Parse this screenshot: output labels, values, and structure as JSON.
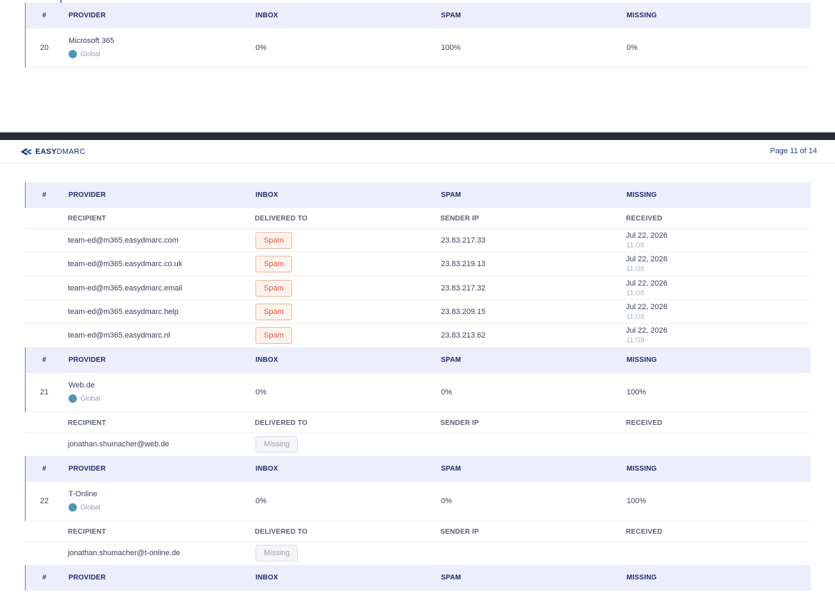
{
  "header": {
    "logo": {
      "bold": "EASY",
      "light": "DMARC"
    },
    "page_label": "Page 11 of 14"
  },
  "columns": {
    "num": "#",
    "provider": "PROVIDER",
    "inbox": "INBOX",
    "spam": "SPAM",
    "missing": "MISSING"
  },
  "sub_columns": {
    "recipient": "RECIPIENT",
    "delivered_to": "DELIVERED TO",
    "sender_ip": "SENDER IP",
    "received": "RECEIVED"
  },
  "providers": [
    {
      "num": "20",
      "name": "Microsoft 365",
      "region": "Global",
      "inbox": "0%",
      "spam": "100%",
      "missing": "0%",
      "recipients": [
        {
          "email": "team-ed@m365.easydmarc.com",
          "status": "Spam",
          "ip": "23.83.217.33",
          "date": "Jul 22, 2026",
          "time": "11:08"
        },
        {
          "email": "team-ed@m365.easydmarc.co.uk",
          "status": "Spam",
          "ip": "23.83.219.13",
          "date": "Jul 22, 2026",
          "time": "11:08"
        },
        {
          "email": "team-ed@m365.easydmarc.email",
          "status": "Spam",
          "ip": "23.83.217.32",
          "date": "Jul 22, 2026",
          "time": "11:08"
        },
        {
          "email": "team-ed@m365.easydmarc.help",
          "status": "Spam",
          "ip": "23.83.209.15",
          "date": "Jul 22, 2026",
          "time": "11:08"
        },
        {
          "email": "team-ed@m365.easydmarc.nl",
          "status": "Spam",
          "ip": "23.83.213.62",
          "date": "Jul 22, 2026",
          "time": "11:09"
        }
      ]
    },
    {
      "num": "21",
      "name": "Web.de",
      "region": "Global",
      "inbox": "0%",
      "spam": "0%",
      "missing": "100%",
      "recipients": [
        {
          "email": "jonathan.shumacher@web.de",
          "status": "Missing"
        }
      ]
    },
    {
      "num": "22",
      "name": "T-Online",
      "region": "Global",
      "inbox": "0%",
      "spam": "0%",
      "missing": "100%",
      "recipients": [
        {
          "email": "jonathan.shumacher@t-online.de",
          "status": "Missing"
        }
      ]
    }
  ],
  "colors": {
    "header_bg": "#eceefb",
    "header_text": "#1f2b6b",
    "accent_line": "#6a71b5",
    "spam_badge_bg": "#fdf3ee",
    "spam_badge_border": "#f3b39a",
    "spam_badge_text": "#e2583c",
    "missing_badge_bg": "#f5f5f7",
    "divider_bar": "#2a2c33"
  },
  "icons": {
    "region": "globe-icon",
    "logo": "easydmarc-logo-icon"
  }
}
